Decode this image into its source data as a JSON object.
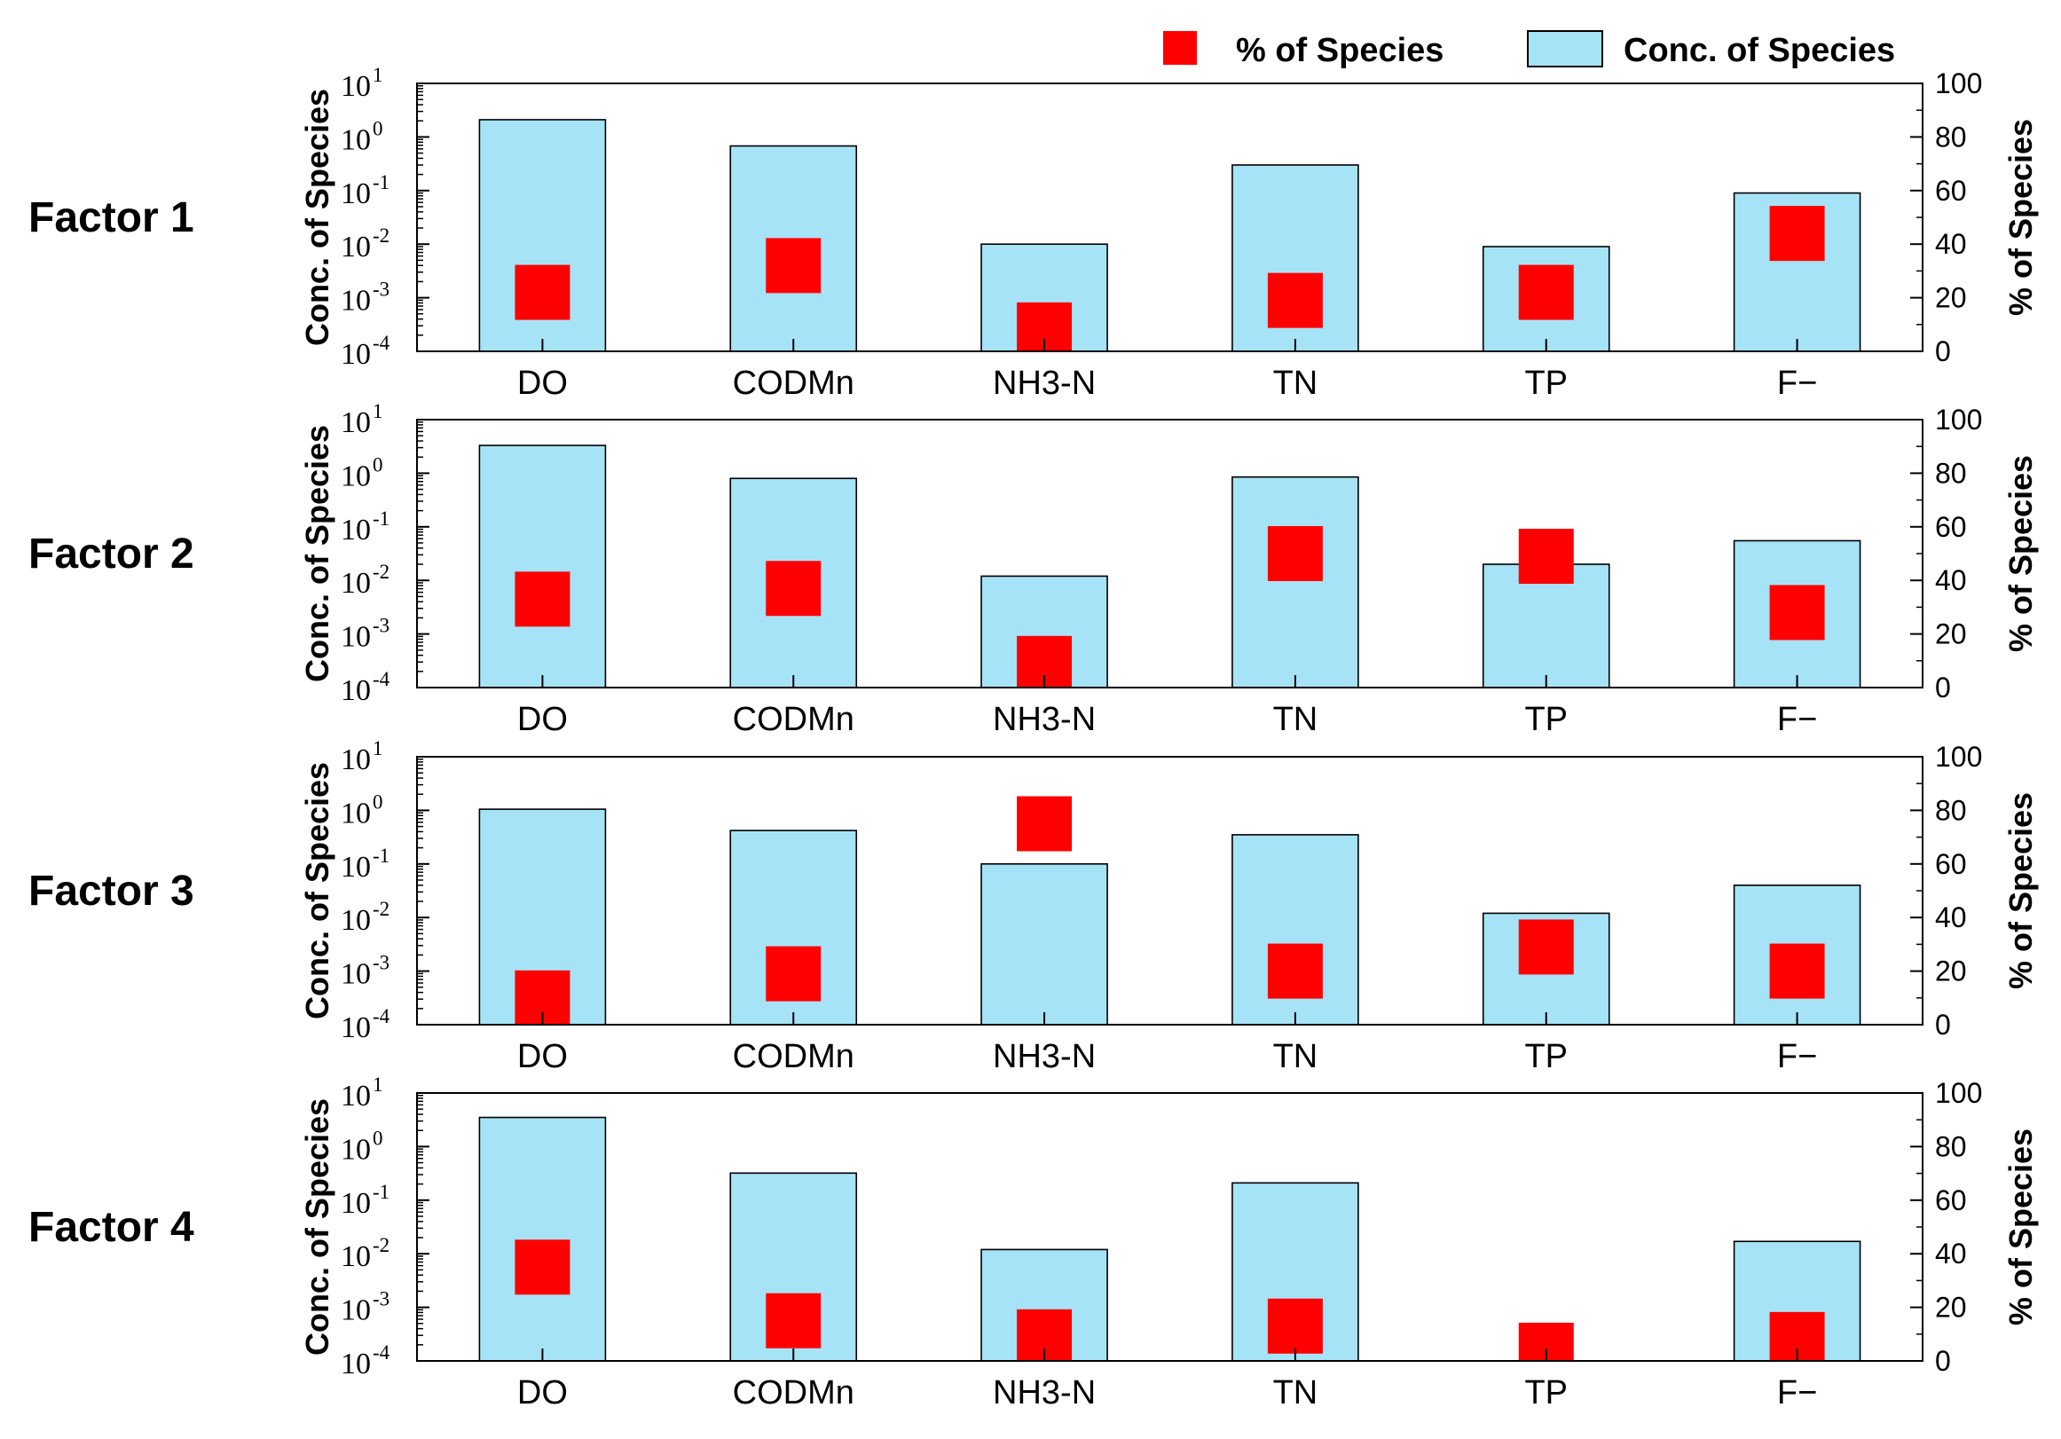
{
  "legend": {
    "pct_label": "% of Species",
    "conc_label": "Conc. of Species"
  },
  "colors": {
    "conc_bar": "#a6e3f7",
    "pct_marker": "#ff0000",
    "axis": "#000000"
  },
  "chart_data": [
    {
      "type": "bar",
      "panel_label": "Factor 1",
      "categories": [
        "DO",
        "CODMn",
        "NH3-N",
        "TN",
        "TP",
        "F−"
      ],
      "left_axis": {
        "label": "Conc. of Species",
        "scale": "log",
        "ylim": [
          0.0001,
          10
        ],
        "tick_bases": [
          "10",
          "10",
          "10",
          "10",
          "10",
          "10"
        ],
        "tick_exponents": [
          "-4",
          "-3",
          "-2",
          "-1",
          "0",
          "1"
        ]
      },
      "right_axis": {
        "label": "% of Species",
        "ylim": [
          0,
          100
        ],
        "ticks": [
          "0",
          "20",
          "40",
          "60",
          "80",
          "100"
        ]
      },
      "series": [
        {
          "name": "Conc. of Species",
          "kind": "bar",
          "values": [
            2.1,
            0.68,
            0.01,
            0.3,
            0.009,
            0.09
          ]
        },
        {
          "name": "% of Species",
          "kind": "marker",
          "values": [
            22,
            32,
            8,
            19,
            22,
            44
          ]
        }
      ]
    },
    {
      "type": "bar",
      "panel_label": "Factor 2",
      "categories": [
        "DO",
        "CODMn",
        "NH3-N",
        "TN",
        "TP",
        "F−"
      ],
      "left_axis": {
        "label": "Conc. of Species",
        "scale": "log",
        "ylim": [
          0.0001,
          10
        ],
        "tick_bases": [
          "10",
          "10",
          "10",
          "10",
          "10",
          "10"
        ],
        "tick_exponents": [
          "-4",
          "-3",
          "-2",
          "-1",
          "0",
          "1"
        ]
      },
      "right_axis": {
        "label": "% of Species",
        "ylim": [
          0,
          100
        ],
        "ticks": [
          "0",
          "20",
          "40",
          "60",
          "80",
          "100"
        ]
      },
      "series": [
        {
          "name": "Conc. of Species",
          "kind": "bar",
          "values": [
            3.3,
            0.8,
            0.012,
            0.85,
            0.02,
            0.055
          ]
        },
        {
          "name": "% of Species",
          "kind": "marker",
          "values": [
            33,
            37,
            9,
            50,
            49,
            28
          ]
        }
      ]
    },
    {
      "type": "bar",
      "panel_label": "Factor 3",
      "categories": [
        "DO",
        "CODMn",
        "NH3-N",
        "TN",
        "TP",
        "F−"
      ],
      "left_axis": {
        "label": "Conc. of Species",
        "scale": "log",
        "ylim": [
          0.0001,
          10
        ],
        "tick_bases": [
          "10",
          "10",
          "10",
          "10",
          "10",
          "10"
        ],
        "tick_exponents": [
          "-4",
          "-3",
          "-2",
          "-1",
          "0",
          "1"
        ]
      },
      "right_axis": {
        "label": "% of Species",
        "ylim": [
          0,
          100
        ],
        "ticks": [
          "0",
          "20",
          "40",
          "60",
          "80",
          "100"
        ]
      },
      "series": [
        {
          "name": "Conc. of Species",
          "kind": "bar",
          "values": [
            1.05,
            0.42,
            0.1,
            0.35,
            0.012,
            0.04
          ]
        },
        {
          "name": "% of Species",
          "kind": "marker",
          "values": [
            10,
            19,
            75,
            20,
            29,
            20
          ]
        }
      ]
    },
    {
      "type": "bar",
      "panel_label": "Factor 4",
      "categories": [
        "DO",
        "CODMn",
        "NH3-N",
        "TN",
        "TP",
        "F−"
      ],
      "left_axis": {
        "label": "Conc. of Species",
        "scale": "log",
        "ylim": [
          0.0001,
          10
        ],
        "tick_bases": [
          "10",
          "10",
          "10",
          "10",
          "10",
          "10"
        ],
        "tick_exponents": [
          "-4",
          "-3",
          "-2",
          "-1",
          "0",
          "1"
        ]
      },
      "right_axis": {
        "label": "% of Species",
        "ylim": [
          0,
          100
        ],
        "ticks": [
          "0",
          "20",
          "40",
          "60",
          "80",
          "100"
        ]
      },
      "series": [
        {
          "name": "Conc. of Species",
          "kind": "bar",
          "values": [
            3.5,
            0.32,
            0.012,
            0.21,
            0.0001,
            0.017
          ]
        },
        {
          "name": "% of Species",
          "kind": "marker",
          "values": [
            35,
            15,
            9,
            13,
            4,
            8
          ]
        }
      ]
    }
  ]
}
